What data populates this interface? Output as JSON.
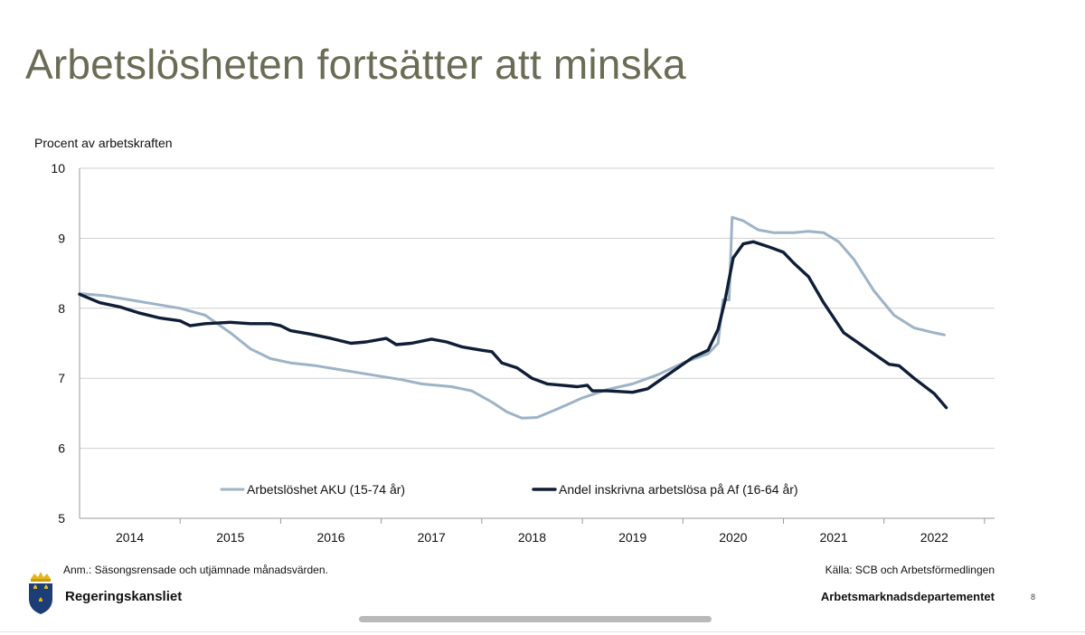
{
  "slide": {
    "title": "Arbetslösheten fortsätter att minska",
    "note": "Anm.: Säsongsrensade och utjämnade månadsvärden.",
    "source": "Källa: SCB och Arbetsförmedlingen",
    "department": "Arbetsmarknadsdepartementet",
    "page_number": "8",
    "logo_text": "Regeringskansliet"
  },
  "colors": {
    "title": "#6b6c55",
    "aku": "#9db3c6",
    "af": "#0f1e36",
    "grid": "#d0d0d0"
  },
  "chart_data": {
    "type": "line",
    "title": "",
    "ylabel": "Procent av arbetskraften",
    "xlabel": "",
    "ylim": [
      5,
      10
    ],
    "xlim": [
      2013.5,
      2022.6
    ],
    "yticks": [
      5,
      6,
      7,
      8,
      9,
      10
    ],
    "xticks": [
      "2014",
      "2015",
      "2016",
      "2017",
      "2018",
      "2019",
      "2020",
      "2021",
      "2022"
    ],
    "grid": true,
    "legend_position": "inside-bottom",
    "series": [
      {
        "name": "Arbetslöshet AKU (15-74 år)",
        "color_key": "aku",
        "points": [
          [
            2013.5,
            8.21
          ],
          [
            2013.75,
            8.18
          ],
          [
            2014.0,
            8.12
          ],
          [
            2014.25,
            8.06
          ],
          [
            2014.5,
            8.0
          ],
          [
            2014.75,
            7.9
          ],
          [
            2015.0,
            7.65
          ],
          [
            2015.2,
            7.42
          ],
          [
            2015.4,
            7.28
          ],
          [
            2015.6,
            7.22
          ],
          [
            2015.85,
            7.18
          ],
          [
            2016.1,
            7.12
          ],
          [
            2016.4,
            7.05
          ],
          [
            2016.7,
            6.98
          ],
          [
            2016.9,
            6.92
          ],
          [
            2017.2,
            6.88
          ],
          [
            2017.4,
            6.82
          ],
          [
            2017.6,
            6.66
          ],
          [
            2017.75,
            6.52
          ],
          [
            2017.9,
            6.43
          ],
          [
            2018.05,
            6.44
          ],
          [
            2018.25,
            6.56
          ],
          [
            2018.5,
            6.72
          ],
          [
            2018.75,
            6.84
          ],
          [
            2019.0,
            6.92
          ],
          [
            2019.25,
            7.05
          ],
          [
            2019.5,
            7.22
          ],
          [
            2019.75,
            7.35
          ],
          [
            2019.85,
            7.5
          ],
          [
            2019.9,
            8.12
          ],
          [
            2019.96,
            8.12
          ],
          [
            2019.99,
            9.3
          ],
          [
            2020.1,
            9.25
          ],
          [
            2020.25,
            9.12
          ],
          [
            2020.4,
            9.08
          ],
          [
            2020.6,
            9.08
          ],
          [
            2020.75,
            9.1
          ],
          [
            2020.9,
            9.08
          ],
          [
            2021.05,
            8.95
          ],
          [
            2021.2,
            8.7
          ],
          [
            2021.4,
            8.25
          ],
          [
            2021.6,
            7.9
          ],
          [
            2021.8,
            7.72
          ],
          [
            2022.0,
            7.65
          ],
          [
            2022.1,
            7.62
          ]
        ]
      },
      {
        "name": "Andel inskrivna arbetslösa på Af (16-64 år)",
        "color_key": "af",
        "points": [
          [
            2013.5,
            8.2
          ],
          [
            2013.7,
            8.08
          ],
          [
            2013.9,
            8.02
          ],
          [
            2014.1,
            7.93
          ],
          [
            2014.3,
            7.86
          ],
          [
            2014.5,
            7.82
          ],
          [
            2014.6,
            7.75
          ],
          [
            2014.75,
            7.78
          ],
          [
            2015.0,
            7.8
          ],
          [
            2015.2,
            7.78
          ],
          [
            2015.4,
            7.78
          ],
          [
            2015.5,
            7.75
          ],
          [
            2015.6,
            7.68
          ],
          [
            2015.8,
            7.63
          ],
          [
            2016.0,
            7.57
          ],
          [
            2016.2,
            7.5
          ],
          [
            2016.35,
            7.52
          ],
          [
            2016.55,
            7.57
          ],
          [
            2016.65,
            7.48
          ],
          [
            2016.8,
            7.5
          ],
          [
            2017.0,
            7.56
          ],
          [
            2017.15,
            7.52
          ],
          [
            2017.3,
            7.45
          ],
          [
            2017.5,
            7.4
          ],
          [
            2017.6,
            7.38
          ],
          [
            2017.7,
            7.22
          ],
          [
            2017.85,
            7.15
          ],
          [
            2018.0,
            7.0
          ],
          [
            2018.15,
            6.92
          ],
          [
            2018.3,
            6.9
          ],
          [
            2018.45,
            6.88
          ],
          [
            2018.55,
            6.9
          ],
          [
            2018.6,
            6.82
          ],
          [
            2018.75,
            6.82
          ],
          [
            2019.0,
            6.8
          ],
          [
            2019.15,
            6.85
          ],
          [
            2019.3,
            7.0
          ],
          [
            2019.45,
            7.15
          ],
          [
            2019.6,
            7.3
          ],
          [
            2019.75,
            7.4
          ],
          [
            2019.85,
            7.7
          ],
          [
            2019.92,
            8.12
          ],
          [
            2020.0,
            8.72
          ],
          [
            2020.1,
            8.92
          ],
          [
            2020.2,
            8.95
          ],
          [
            2020.35,
            8.88
          ],
          [
            2020.5,
            8.8
          ],
          [
            2020.6,
            8.65
          ],
          [
            2020.75,
            8.45
          ],
          [
            2020.9,
            8.08
          ],
          [
            2021.1,
            7.65
          ],
          [
            2021.25,
            7.5
          ],
          [
            2021.4,
            7.35
          ],
          [
            2021.55,
            7.2
          ],
          [
            2021.65,
            7.18
          ],
          [
            2021.8,
            7.0
          ],
          [
            2022.0,
            6.78
          ],
          [
            2022.12,
            6.58
          ]
        ]
      }
    ]
  }
}
